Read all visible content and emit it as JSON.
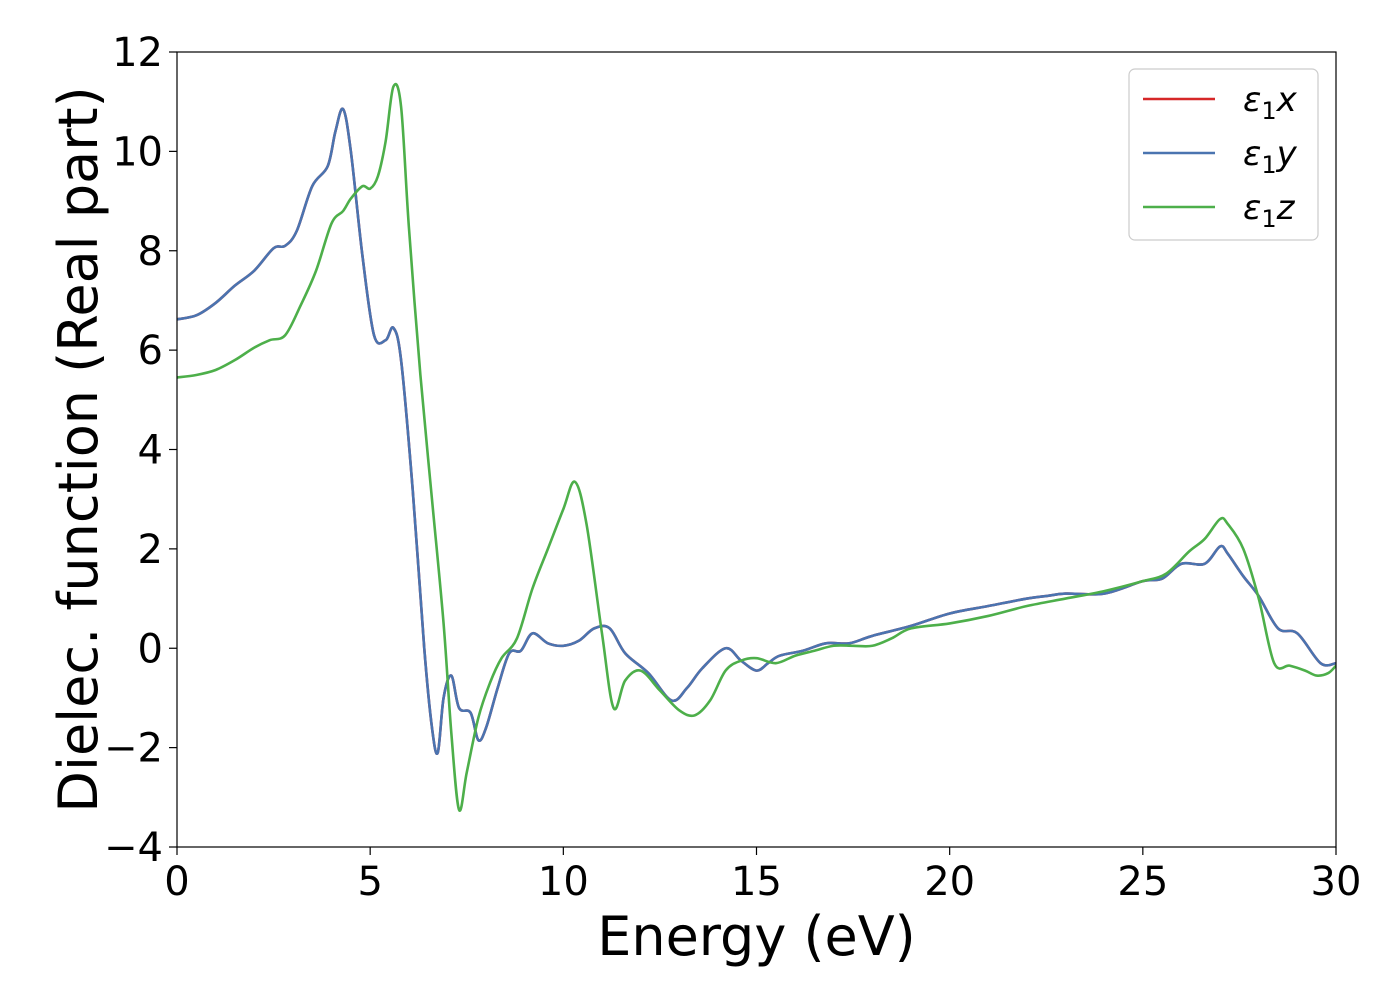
{
  "chart_data": {
    "type": "line",
    "title": "",
    "xlabel": "Energy (eV)",
    "ylabel": "Dielec. function (Real part)",
    "xlim": [
      0,
      30
    ],
    "ylim": [
      -4,
      12
    ],
    "xticks": [
      0,
      5,
      10,
      15,
      20,
      25,
      30
    ],
    "yticks": [
      -4,
      -2,
      0,
      2,
      4,
      6,
      8,
      10,
      12
    ],
    "xtick_labels": [
      "0",
      "5",
      "10",
      "15",
      "20",
      "25",
      "30"
    ],
    "ytick_labels": [
      "−4",
      "−2",
      "0",
      "2",
      "4",
      "6",
      "8",
      "10",
      "12"
    ],
    "grid": false,
    "legend_position": "top-right",
    "series": [
      {
        "name": "ε1x",
        "legend_symbol": "ε",
        "legend_sub": "1",
        "legend_var": "x",
        "color": "#d62728",
        "x": [
          0,
          0.5,
          1,
          1.5,
          2,
          2.5,
          2.8,
          3.1,
          3.5,
          3.9,
          4.1,
          4.3,
          4.5,
          4.8,
          5.1,
          5.4,
          5.6,
          5.8,
          6.1,
          6.4,
          6.6,
          6.75,
          6.9,
          7.1,
          7.3,
          7.6,
          7.8,
          8.0,
          8.3,
          8.6,
          8.9,
          9.2,
          9.6,
          10.0,
          10.4,
          10.8,
          11.2,
          11.6,
          12.2,
          12.8,
          13.2,
          13.6,
          14.2,
          14.6,
          15.0,
          15.3,
          15.6,
          16.2,
          16.8,
          17.4,
          18.0,
          19.0,
          20.0,
          21.0,
          22.0,
          22.5,
          23.0,
          24.0,
          25.0,
          25.5,
          26.0,
          26.6,
          27.0,
          27.2,
          27.6,
          28.0,
          28.5,
          29.0,
          29.6,
          30.0
        ],
        "y": [
          6.62,
          6.7,
          6.95,
          7.3,
          7.6,
          8.05,
          8.1,
          8.4,
          9.3,
          9.7,
          10.4,
          10.85,
          10.0,
          7.9,
          6.3,
          6.2,
          6.45,
          5.8,
          3.2,
          0.0,
          -1.6,
          -2.1,
          -1.0,
          -0.55,
          -1.2,
          -1.3,
          -1.85,
          -1.6,
          -0.8,
          -0.1,
          -0.05,
          0.3,
          0.1,
          0.05,
          0.15,
          0.4,
          0.4,
          -0.1,
          -0.5,
          -1.05,
          -0.8,
          -0.4,
          0.0,
          -0.25,
          -0.45,
          -0.3,
          -0.15,
          -0.05,
          0.1,
          0.1,
          0.25,
          0.45,
          0.7,
          0.85,
          1.0,
          1.05,
          1.1,
          1.1,
          1.35,
          1.4,
          1.7,
          1.7,
          2.05,
          1.9,
          1.45,
          1.05,
          0.4,
          0.3,
          -0.3,
          -0.3
        ]
      },
      {
        "name": "ε1y",
        "legend_symbol": "ε",
        "legend_sub": "1",
        "legend_var": "y",
        "color": "#4a74b0",
        "x": [
          0,
          0.5,
          1,
          1.5,
          2,
          2.5,
          2.8,
          3.1,
          3.5,
          3.9,
          4.1,
          4.3,
          4.5,
          4.8,
          5.1,
          5.4,
          5.6,
          5.8,
          6.1,
          6.4,
          6.6,
          6.75,
          6.9,
          7.1,
          7.3,
          7.6,
          7.8,
          8.0,
          8.3,
          8.6,
          8.9,
          9.2,
          9.6,
          10.0,
          10.4,
          10.8,
          11.2,
          11.6,
          12.2,
          12.8,
          13.2,
          13.6,
          14.2,
          14.6,
          15.0,
          15.3,
          15.6,
          16.2,
          16.8,
          17.4,
          18.0,
          19.0,
          20.0,
          21.0,
          22.0,
          22.5,
          23.0,
          24.0,
          25.0,
          25.5,
          26.0,
          26.6,
          27.0,
          27.2,
          27.6,
          28.0,
          28.5,
          29.0,
          29.6,
          30.0
        ],
        "y": [
          6.62,
          6.7,
          6.95,
          7.3,
          7.6,
          8.05,
          8.1,
          8.4,
          9.3,
          9.7,
          10.4,
          10.85,
          10.0,
          7.9,
          6.3,
          6.2,
          6.45,
          5.8,
          3.2,
          0.0,
          -1.6,
          -2.1,
          -1.0,
          -0.55,
          -1.2,
          -1.3,
          -1.85,
          -1.6,
          -0.8,
          -0.1,
          -0.05,
          0.3,
          0.1,
          0.05,
          0.15,
          0.4,
          0.4,
          -0.1,
          -0.5,
          -1.05,
          -0.8,
          -0.4,
          0.0,
          -0.25,
          -0.45,
          -0.3,
          -0.15,
          -0.05,
          0.1,
          0.1,
          0.25,
          0.45,
          0.7,
          0.85,
          1.0,
          1.05,
          1.1,
          1.1,
          1.35,
          1.4,
          1.7,
          1.7,
          2.05,
          1.9,
          1.45,
          1.05,
          0.4,
          0.3,
          -0.3,
          -0.3
        ]
      },
      {
        "name": "ε1z",
        "legend_symbol": "ε",
        "legend_sub": "1",
        "legend_var": "z",
        "color": "#4daf4a",
        "x": [
          0,
          0.5,
          1,
          1.5,
          2,
          2.4,
          2.8,
          3.2,
          3.6,
          4.0,
          4.3,
          4.5,
          4.8,
          5.0,
          5.2,
          5.4,
          5.6,
          5.8,
          6.0,
          6.3,
          6.6,
          6.9,
          7.1,
          7.3,
          7.5,
          7.8,
          8.1,
          8.4,
          8.8,
          9.2,
          9.6,
          10.0,
          10.3,
          10.6,
          11.0,
          11.3,
          11.6,
          12.0,
          12.5,
          13.0,
          13.4,
          13.8,
          14.2,
          14.6,
          15.0,
          15.5,
          16.0,
          16.5,
          17.0,
          17.5,
          18.0,
          18.5,
          19.0,
          20.0,
          21.0,
          22.0,
          23.0,
          24.0,
          25.0,
          25.6,
          26.2,
          26.6,
          27.0,
          27.2,
          27.6,
          28.0,
          28.4,
          28.8,
          29.2,
          29.5,
          29.8,
          30.0
        ],
        "y": [
          5.45,
          5.5,
          5.6,
          5.8,
          6.05,
          6.2,
          6.3,
          6.9,
          7.6,
          8.55,
          8.8,
          9.05,
          9.3,
          9.25,
          9.5,
          10.2,
          11.3,
          10.9,
          8.5,
          5.5,
          3.0,
          0.5,
          -1.7,
          -3.25,
          -2.5,
          -1.4,
          -0.7,
          -0.2,
          0.2,
          1.2,
          2.0,
          2.8,
          3.35,
          2.5,
          0.3,
          -1.2,
          -0.65,
          -0.45,
          -0.85,
          -1.25,
          -1.35,
          -1.05,
          -0.45,
          -0.25,
          -0.2,
          -0.3,
          -0.15,
          -0.05,
          0.05,
          0.05,
          0.05,
          0.2,
          0.4,
          0.5,
          0.65,
          0.85,
          1.0,
          1.15,
          1.35,
          1.5,
          1.95,
          2.2,
          2.6,
          2.5,
          2.0,
          1.0,
          -0.3,
          -0.35,
          -0.45,
          -0.55,
          -0.5,
          -0.35
        ]
      }
    ]
  }
}
